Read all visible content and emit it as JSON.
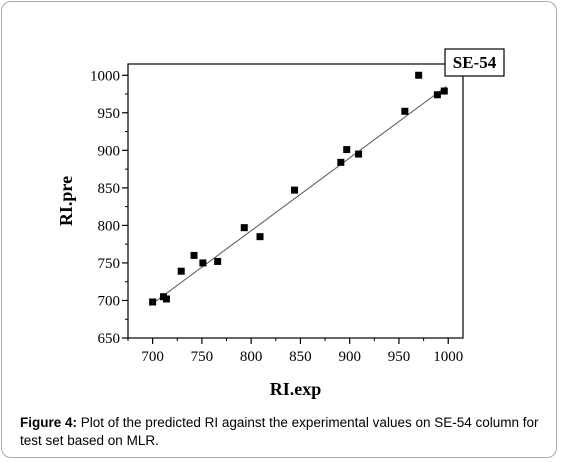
{
  "chart_data": {
    "type": "scatter",
    "xlabel": "RI.exp",
    "ylabel": "RI.pre",
    "legend_label": "SE-54",
    "legend_position": "top-right",
    "xlim": [
      675,
      1015
    ],
    "ylim": [
      650,
      1015
    ],
    "x_ticks": [
      700,
      750,
      800,
      850,
      900,
      950,
      1000
    ],
    "y_ticks": [
      650,
      700,
      750,
      800,
      850,
      900,
      950,
      1000
    ],
    "grid": false,
    "points": [
      {
        "x": 700,
        "y": 698
      },
      {
        "x": 711,
        "y": 705
      },
      {
        "x": 714,
        "y": 702
      },
      {
        "x": 729,
        "y": 739
      },
      {
        "x": 742,
        "y": 760
      },
      {
        "x": 751,
        "y": 750
      },
      {
        "x": 766,
        "y": 752
      },
      {
        "x": 793,
        "y": 797
      },
      {
        "x": 809,
        "y": 785
      },
      {
        "x": 844,
        "y": 847
      },
      {
        "x": 891,
        "y": 884
      },
      {
        "x": 897,
        "y": 901
      },
      {
        "x": 909,
        "y": 895
      },
      {
        "x": 956,
        "y": 952
      },
      {
        "x": 970,
        "y": 1000
      },
      {
        "x": 989,
        "y": 974
      },
      {
        "x": 996,
        "y": 979
      }
    ],
    "fit_line": {
      "x": [
        697,
        998
      ],
      "y": [
        693,
        985
      ]
    }
  },
  "caption": {
    "label": "Figure 4:",
    "text": " Plot of the predicted RI against the experimental values on SE-54 column for test set based on MLR."
  }
}
